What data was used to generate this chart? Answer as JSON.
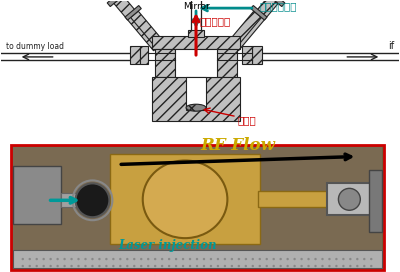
{
  "bg_color": "#ffffff",
  "photo_border": "#cc0000",
  "mirror_label": "Mirror",
  "laser_beam_label": "レーザビーム",
  "electron_beam_label": "電子ビーム",
  "photocathode_label": "光陰極",
  "dummy_load_label": "to dummy load",
  "rf_label": "if",
  "rf_flow_label": "RF Flow",
  "laser_injection_label": "Laser injection",
  "laser_beam_color": "#008B8B",
  "electron_beam_color": "#cc0000",
  "rf_flow_color": "#ccaa00",
  "laser_inj_color": "#009999",
  "schematic_line_color": "#222222",
  "hatch_face": "#C0C0C0"
}
